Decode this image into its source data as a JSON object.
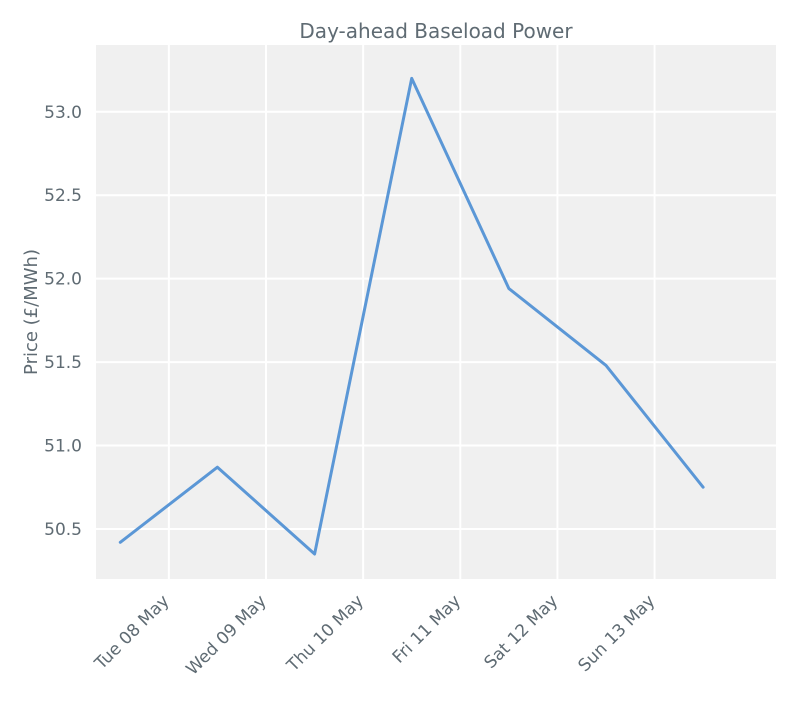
{
  "chart_data": {
    "type": "line",
    "title": "Day-ahead Baseload Power",
    "xlabel": "",
    "ylabel": "Price (£/MWh)",
    "x_tick_labels": [
      "Tue 08 May",
      "Wed 09 May",
      "Thu 10 May",
      "Fri 11 May",
      "Sat 12 May",
      "Sun 13 May"
    ],
    "y_ticks": [
      50.5,
      51.0,
      51.5,
      52.0,
      52.5,
      53.0
    ],
    "y_tick_labels": [
      "50.5",
      "51.0",
      "51.5",
      "52.0",
      "52.5",
      "53.0"
    ],
    "ylim": [
      50.2,
      53.4
    ],
    "xlim": [
      "2018-05-07 06:00",
      "2018-05-14 06:00"
    ],
    "series": [
      {
        "x": [
          "2018-05-07 12:00",
          "2018-05-08 12:00",
          "2018-05-09 12:00",
          "2018-05-10 12:00",
          "2018-05-11 12:00",
          "2018-05-12 12:00",
          "2018-05-13 12:00"
        ],
        "values": [
          50.42,
          50.87,
          50.35,
          53.2,
          51.94,
          51.48,
          50.75
        ],
        "color": "#5b97d6"
      }
    ],
    "grid": true,
    "legend": false,
    "colors": {
      "background": "#f0f0f0",
      "grid": "#ffffff",
      "text": "#5f6b73",
      "line": "#5b97d6"
    }
  }
}
